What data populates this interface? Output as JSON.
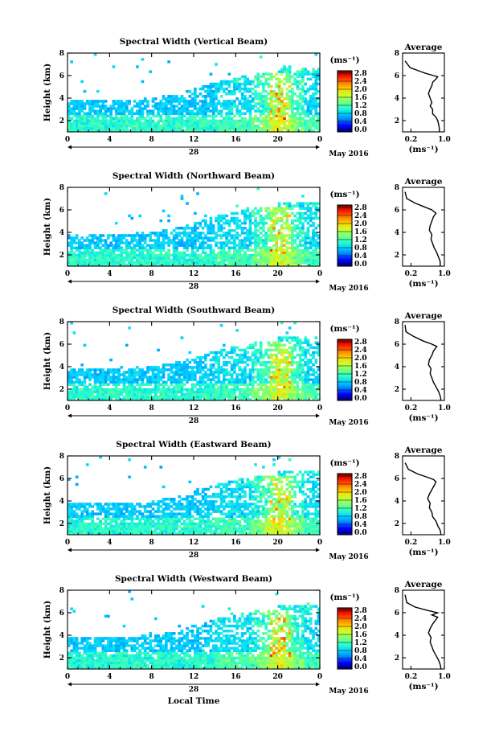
{
  "chart_data": [
    {
      "type": "heatmap",
      "title": "Spectral Width (Vertical Beam)",
      "ylabel": "Height (km)",
      "xlabel": "",
      "x_ticks": [
        "0",
        "4",
        "8",
        "12",
        "16",
        "20",
        "0"
      ],
      "y_ticks": [
        "2",
        "4",
        "6",
        "8"
      ],
      "date_label": "28",
      "month_label": "May 2016",
      "xlim": [
        0,
        24
      ],
      "ylim": [
        1,
        8
      ],
      "colorbar": {
        "unit": "(ms⁻¹)",
        "ticks": [
          "0.0",
          "0.4",
          "0.8",
          "1.2",
          "1.6",
          "2.0",
          "2.4",
          "2.8"
        ]
      },
      "average_profile": {
        "title": "Average",
        "xlabel": "(ms⁻¹)",
        "x_ticks": [
          "0.2",
          "1.0"
        ],
        "y_ticks": [
          "2",
          "4",
          "6",
          "8"
        ],
        "xlim": [
          0,
          1
        ],
        "ylim": [
          1,
          8
        ],
        "points": [
          [
            0.88,
            1.0
          ],
          [
            0.88,
            1.3
          ],
          [
            0.86,
            1.7
          ],
          [
            0.84,
            2.0
          ],
          [
            0.8,
            2.3
          ],
          [
            0.72,
            2.6
          ],
          [
            0.72,
            3.0
          ],
          [
            0.66,
            3.3
          ],
          [
            0.7,
            3.6
          ],
          [
            0.66,
            4.0
          ],
          [
            0.62,
            4.4
          ],
          [
            0.66,
            4.8
          ],
          [
            0.7,
            5.1
          ],
          [
            0.72,
            5.4
          ],
          [
            0.8,
            5.7
          ],
          [
            0.84,
            5.9
          ],
          [
            0.74,
            6.0
          ],
          [
            0.55,
            6.2
          ],
          [
            0.4,
            6.4
          ],
          [
            0.18,
            6.7
          ],
          [
            0.06,
            7.3
          ]
        ]
      }
    },
    {
      "type": "heatmap",
      "title": "Spectral Width (Northward Beam)",
      "ylabel": "Height (km)",
      "xlabel": "",
      "x_ticks": [
        "0",
        "4",
        "8",
        "12",
        "16",
        "20",
        "0"
      ],
      "y_ticks": [
        "2",
        "4",
        "6",
        "8"
      ],
      "date_label": "28",
      "month_label": "May 2016",
      "xlim": [
        0,
        24
      ],
      "ylim": [
        1,
        8
      ],
      "colorbar": {
        "unit": "(ms⁻¹)",
        "ticks": [
          "0.0",
          "0.4",
          "0.8",
          "1.2",
          "1.6",
          "2.0",
          "2.4",
          "2.8"
        ]
      },
      "average_profile": {
        "title": "Average",
        "xlabel": "(ms⁻¹)",
        "x_ticks": [
          "0.2",
          "1.0"
        ],
        "y_ticks": [
          "2",
          "4",
          "6",
          "8"
        ],
        "xlim": [
          0,
          1
        ],
        "ylim": [
          1,
          8
        ],
        "points": [
          [
            0.9,
            1.0
          ],
          [
            0.9,
            1.4
          ],
          [
            0.86,
            1.8
          ],
          [
            0.82,
            2.2
          ],
          [
            0.76,
            2.6
          ],
          [
            0.72,
            3.0
          ],
          [
            0.68,
            3.4
          ],
          [
            0.7,
            3.8
          ],
          [
            0.64,
            4.2
          ],
          [
            0.66,
            4.6
          ],
          [
            0.7,
            5.0
          ],
          [
            0.74,
            5.4
          ],
          [
            0.8,
            5.7
          ],
          [
            0.7,
            6.0
          ],
          [
            0.5,
            6.3
          ],
          [
            0.3,
            6.6
          ],
          [
            0.1,
            7.0
          ],
          [
            0.06,
            7.6
          ]
        ]
      }
    },
    {
      "type": "heatmap",
      "title": "Spectral Width (Southward Beam)",
      "ylabel": "Height (km)",
      "xlabel": "",
      "x_ticks": [
        "0",
        "4",
        "8",
        "12",
        "16",
        "20",
        "0"
      ],
      "y_ticks": [
        "2",
        "4",
        "6",
        "8"
      ],
      "date_label": "28",
      "month_label": "May 2016",
      "xlim": [
        0,
        24
      ],
      "ylim": [
        1,
        8
      ],
      "colorbar": {
        "unit": "(ms⁻¹)",
        "ticks": [
          "0.0",
          "0.4",
          "0.8",
          "1.2",
          "1.6",
          "2.0",
          "2.4",
          "2.8"
        ]
      },
      "average_profile": {
        "title": "Average",
        "xlabel": "(ms⁻¹)",
        "x_ticks": [
          "0.2",
          "1.0"
        ],
        "y_ticks": [
          "2",
          "4",
          "6",
          "8"
        ],
        "xlim": [
          0,
          1
        ],
        "ylim": [
          1,
          8
        ],
        "points": [
          [
            0.92,
            1.0
          ],
          [
            0.9,
            1.4
          ],
          [
            0.86,
            1.8
          ],
          [
            0.8,
            2.2
          ],
          [
            0.74,
            2.6
          ],
          [
            0.7,
            3.0
          ],
          [
            0.66,
            3.4
          ],
          [
            0.68,
            3.8
          ],
          [
            0.62,
            4.2
          ],
          [
            0.64,
            4.6
          ],
          [
            0.7,
            5.0
          ],
          [
            0.74,
            5.4
          ],
          [
            0.82,
            5.8
          ],
          [
            0.7,
            6.0
          ],
          [
            0.48,
            6.3
          ],
          [
            0.26,
            6.7
          ],
          [
            0.08,
            7.1
          ],
          [
            0.06,
            7.7
          ]
        ]
      }
    },
    {
      "type": "heatmap",
      "title": "Spectral Width (Eastward Beam)",
      "ylabel": "Height (km)",
      "xlabel": "",
      "x_ticks": [
        "0",
        "4",
        "8",
        "12",
        "16",
        "20",
        "0"
      ],
      "y_ticks": [
        "2",
        "4",
        "6",
        "8"
      ],
      "date_label": "28",
      "month_label": "May 2016",
      "xlim": [
        0,
        24
      ],
      "ylim": [
        1,
        8
      ],
      "colorbar": {
        "unit": "(ms⁻¹)",
        "ticks": [
          "0.0",
          "0.4",
          "0.8",
          "1.2",
          "1.6",
          "2.0",
          "2.4",
          "2.8"
        ]
      },
      "average_profile": {
        "title": "Average",
        "xlabel": "(ms⁻¹)",
        "x_ticks": [
          "0.2",
          "1.0"
        ],
        "y_ticks": [
          "2",
          "4",
          "6",
          "8"
        ],
        "xlim": [
          0,
          1
        ],
        "ylim": [
          1,
          8
        ],
        "points": [
          [
            0.92,
            1.0
          ],
          [
            0.9,
            1.4
          ],
          [
            0.84,
            1.8
          ],
          [
            0.8,
            2.2
          ],
          [
            0.72,
            2.6
          ],
          [
            0.7,
            3.0
          ],
          [
            0.64,
            3.4
          ],
          [
            0.66,
            3.8
          ],
          [
            0.6,
            4.2
          ],
          [
            0.64,
            4.6
          ],
          [
            0.7,
            5.0
          ],
          [
            0.76,
            5.4
          ],
          [
            0.8,
            5.7
          ],
          [
            0.74,
            5.9
          ],
          [
            0.6,
            6.1
          ],
          [
            0.36,
            6.4
          ],
          [
            0.14,
            6.8
          ],
          [
            0.06,
            7.4
          ]
        ]
      }
    },
    {
      "type": "heatmap",
      "title": "Spectral Width (Westward Beam)",
      "ylabel": "Height (km)",
      "xlabel": "Local Time",
      "x_ticks": [
        "0",
        "4",
        "8",
        "12",
        "16",
        "20",
        "0"
      ],
      "y_ticks": [
        "2",
        "4",
        "6",
        "8"
      ],
      "date_label": "28",
      "month_label": "May 2016",
      "xlim": [
        0,
        24
      ],
      "ylim": [
        1,
        8
      ],
      "colorbar": {
        "unit": "(ms⁻¹)",
        "ticks": [
          "0.0",
          "0.4",
          "0.8",
          "1.2",
          "1.6",
          "2.0",
          "2.4",
          "2.8"
        ]
      },
      "average_profile": {
        "title": "Average",
        "xlabel": "(ms⁻¹)",
        "x_ticks": [
          "0.2",
          "1.0"
        ],
        "y_ticks": [
          "2",
          "4",
          "6",
          "8"
        ],
        "xlim": [
          0,
          1
        ],
        "ylim": [
          1,
          8
        ],
        "points": [
          [
            0.92,
            1.0
          ],
          [
            0.9,
            1.4
          ],
          [
            0.86,
            1.8
          ],
          [
            0.8,
            2.2
          ],
          [
            0.74,
            2.6
          ],
          [
            0.7,
            3.0
          ],
          [
            0.66,
            3.4
          ],
          [
            0.68,
            3.8
          ],
          [
            0.62,
            4.2
          ],
          [
            0.66,
            4.6
          ],
          [
            0.72,
            5.0
          ],
          [
            0.78,
            5.3
          ],
          [
            0.84,
            5.6
          ],
          [
            0.7,
            5.8
          ],
          [
            0.84,
            6.0
          ],
          [
            0.6,
            6.2
          ],
          [
            0.3,
            6.5
          ],
          [
            0.1,
            6.9
          ],
          [
            0.06,
            7.6
          ]
        ]
      }
    }
  ],
  "colors": {
    "colormap": [
      "#00007f",
      "#0000ff",
      "#0080ff",
      "#00d4ff",
      "#2effc8",
      "#7bff7b",
      "#c8ff2e",
      "#ffd400",
      "#ff8000",
      "#ff1a00",
      "#7f0000"
    ],
    "background": "#ffffff",
    "axes": "#000000"
  }
}
